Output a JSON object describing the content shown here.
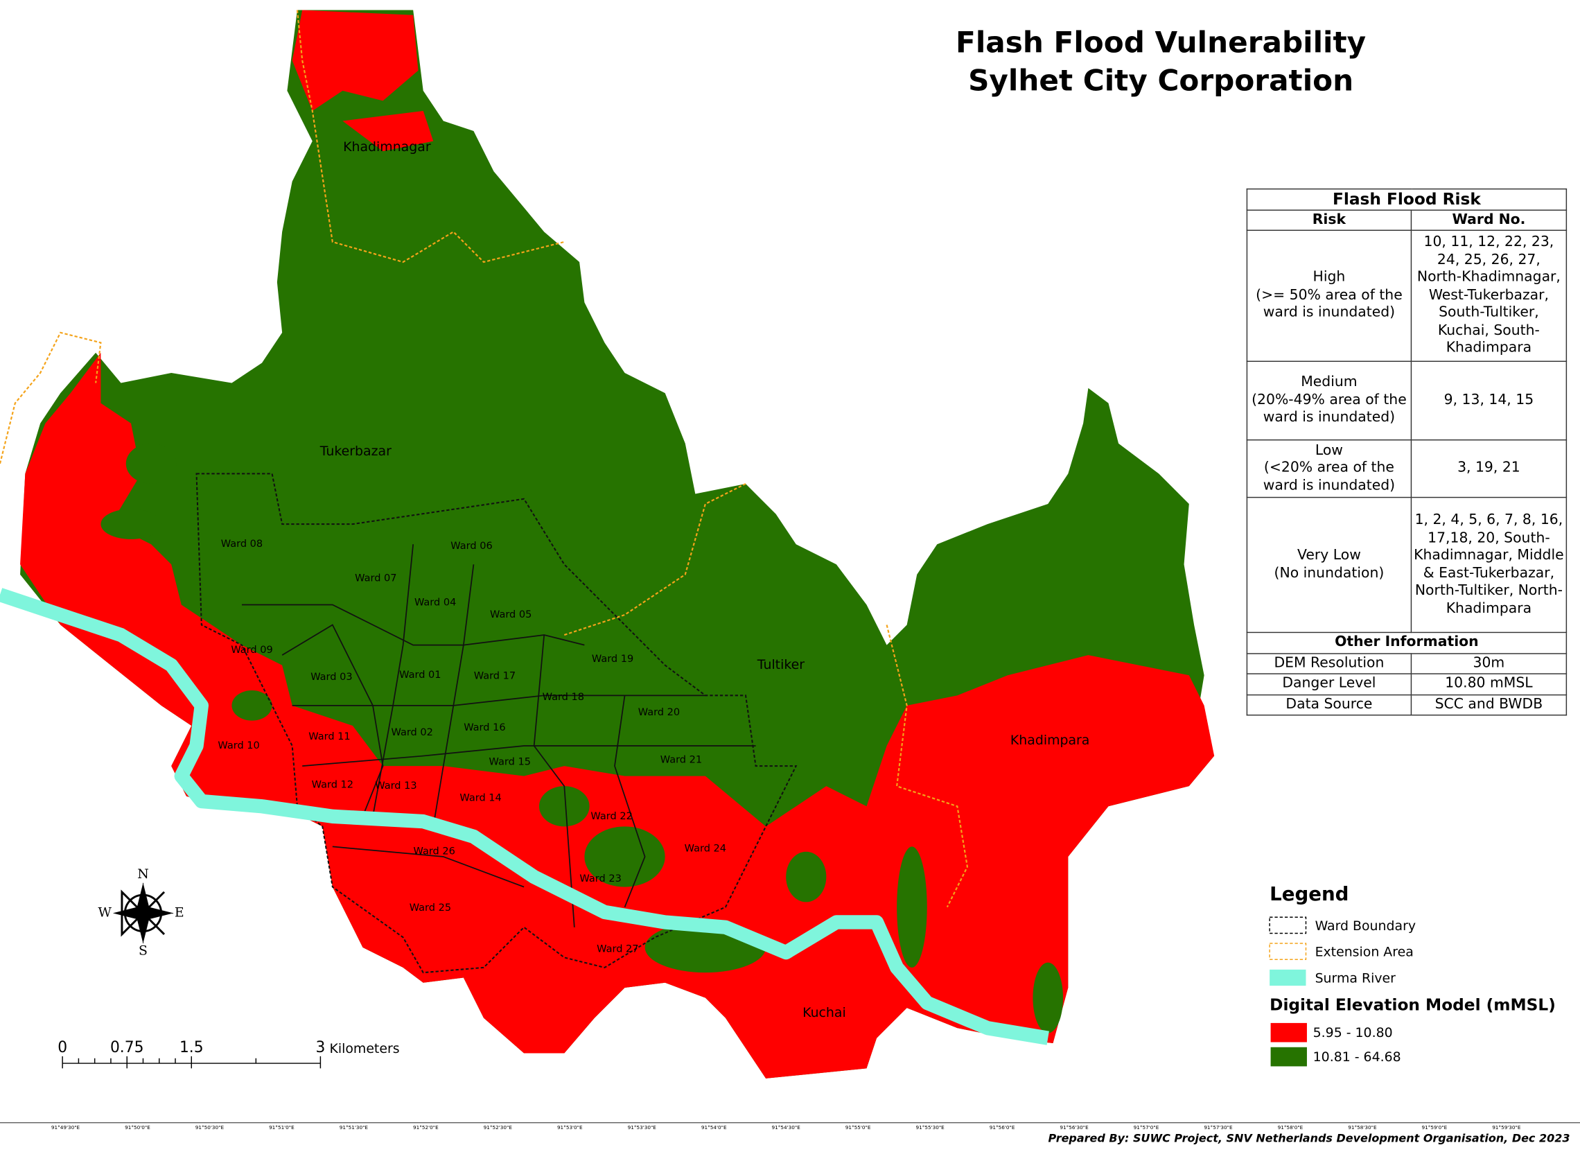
{
  "title_lines": [
    "Flash Flood Vulnerability",
    "Sylhet City Corporation"
  ],
  "place_labels": [
    "Khadimnagar",
    "Tukerbazar",
    "Tultiker",
    "Khadimpara",
    "Kuchai"
  ],
  "ward_labels": [
    "Ward 08",
    "Ward 06",
    "Ward 07",
    "Ward 04",
    "Ward 05",
    "Ward 09",
    "Ward 19",
    "Ward 03",
    "Ward 01",
    "Ward 17",
    "Ward 18",
    "Ward 20",
    "Ward 11",
    "Ward 02",
    "Ward 16",
    "Ward 10",
    "Ward 15",
    "Ward 21",
    "Ward 12",
    "Ward 13",
    "Ward 14",
    "Ward 22",
    "Ward 26",
    "Ward 24",
    "Ward 23",
    "Ward 25",
    "Ward 27"
  ],
  "risk_table": {
    "title": "Flash Flood Risk",
    "headers": [
      "Risk",
      "Ward No."
    ],
    "rows": [
      {
        "risk": "High",
        "criterion": "(>= 50% area of the ward is inundated)",
        "wards": "10, 11, 12, 22, 23, 24, 25, 26, 27, North-Khadimnagar, West-Tukerbazar, South-Tultiker, Kuchai, South-Khadimpara"
      },
      {
        "risk": "Medium",
        "criterion": "(20%-49% area of the ward is inundated)",
        "wards": "9, 13, 14, 15"
      },
      {
        "risk": "Low",
        "criterion": "(<20% area of the ward is inundated)",
        "wards": "3, 19, 21"
      },
      {
        "risk": "Very Low",
        "criterion": "(No inundation)",
        "wards": "1, 2, 4, 5, 6, 7, 8, 16, 17,18, 20, South-Khadimnagar, Middle & East-Tukerbazar, North-Tultiker, North-Khadimpara"
      }
    ]
  },
  "other_info": {
    "title": "Other Information",
    "rows": [
      [
        "DEM Resolution",
        "30m"
      ],
      [
        "Danger Level",
        "10.80 mMSL"
      ],
      [
        "Data Source",
        "SCC and BWDB"
      ]
    ]
  },
  "legend": {
    "title": "Legend",
    "items": [
      "Ward Boundary",
      "Extension Area",
      "Surma River"
    ],
    "dem_title": "Digital Elevation Model (mMSL)",
    "dem_items": [
      {
        "label": "5.95 - 10.80",
        "color": "#ff0000"
      },
      {
        "label": "10.81 - 64.68",
        "color": "#267300"
      }
    ]
  },
  "scale_bar": {
    "ticks": [
      0,
      0.75,
      1.5,
      3
    ],
    "unit": "Kilometers"
  },
  "compass": [
    "N",
    "E",
    "S",
    "W"
  ],
  "longitude_ticks": [
    "91°49'30\"E",
    "91°50'0\"E",
    "91°50'30\"E",
    "91°51'0\"E",
    "91°51'30\"E",
    "91°52'0\"E",
    "91°52'30\"E",
    "91°53'0\"E",
    "91°53'30\"E",
    "91°54'0\"E",
    "91°54'30\"E",
    "91°55'0\"E",
    "91°55'30\"E",
    "91°56'0\"E",
    "91°56'30\"E",
    "91°57'0\"E",
    "91°57'30\"E",
    "91°58'0\"E",
    "91°58'30\"E",
    "91°59'0\"E",
    "91°59'30\"E"
  ],
  "footer": "Prepared By: SUWC Project, SNV Netherlands Development Organisation, Dec 2023"
}
